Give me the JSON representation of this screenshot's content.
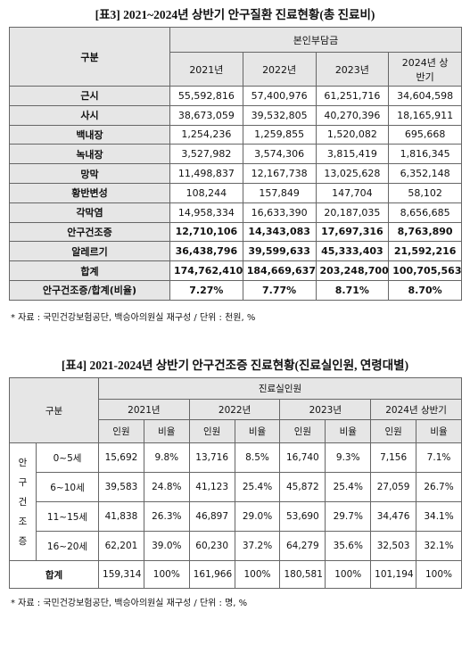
{
  "table3": {
    "title": "[표3] 2021~2024년 상반기 안구질환 진료현황(총 진료비)",
    "header": {
      "group": "구분",
      "super": "본인부담금",
      "years": [
        "2021년",
        "2022년",
        "2023년",
        "2024년 상반기"
      ]
    },
    "rows": [
      [
        "근시",
        "55,592,816",
        "57,400,976",
        "61,251,716",
        "34,604,598"
      ],
      [
        "사시",
        "38,673,059",
        "39,532,805",
        "40,270,396",
        "18,165,911"
      ],
      [
        "백내장",
        "1,254,236",
        "1,259,855",
        "1,520,082",
        "695,668"
      ],
      [
        "녹내장",
        "3,527,982",
        "3,574,306",
        "3,815,419",
        "1,816,345"
      ],
      [
        "망막",
        "11,498,837",
        "12,167,738",
        "13,025,628",
        "6,352,148"
      ],
      [
        "황반변성",
        "108,244",
        "157,849",
        "147,704",
        "58,102"
      ],
      [
        "각막염",
        "14,958,334",
        "16,633,390",
        "20,187,035",
        "8,656,685"
      ],
      [
        "안구건조증",
        "12,710,106",
        "14,343,083",
        "17,697,316",
        "8,763,890"
      ],
      [
        "알레르기",
        "36,438,796",
        "39,599,633",
        "45,333,403",
        "21,592,216"
      ],
      [
        "합계",
        "174,762,410",
        "184,669,637",
        "203,248,700",
        "100,705,563"
      ],
      [
        "안구건조증/합계(비율)",
        "7.27%",
        "7.77%",
        "8.71%",
        "8.70%"
      ]
    ],
    "note": "* 자료 : 국민건강보험공단, 백승아의원실 재구성 / 단위 : 천원, %"
  },
  "table4": {
    "title": "[표4] 2021-2024년 상반기 안구건조증 진료현황(진료실인원, 연령대별)",
    "header": {
      "group": "구분",
      "super": "진료실인원",
      "years": [
        "2021년",
        "2022년",
        "2023년",
        "2024년 상반기"
      ],
      "subcols": [
        "인원",
        "비율",
        "인원",
        "비율",
        "인원",
        "비율",
        "인원",
        "비율"
      ]
    },
    "group_label": "안구건조증",
    "rows": [
      [
        "0~5세",
        "15,692",
        "9.8%",
        "13,716",
        "8.5%",
        "16,740",
        "9.3%",
        "7,156",
        "7.1%"
      ],
      [
        "6~10세",
        "39,583",
        "24.8%",
        "41,123",
        "25.4%",
        "45,872",
        "25.4%",
        "27,059",
        "26.7%"
      ],
      [
        "11~15세",
        "41,838",
        "26.3%",
        "46,897",
        "29.0%",
        "53,690",
        "29.7%",
        "34,476",
        "34.1%"
      ],
      [
        "16~20세",
        "62,201",
        "39.0%",
        "60,230",
        "37.2%",
        "64,279",
        "35.6%",
        "32,503",
        "32.1%"
      ]
    ],
    "total": [
      "합계",
      "159,314",
      "100%",
      "161,966",
      "100%",
      "180,581",
      "100%",
      "101,194",
      "100%"
    ],
    "note": "* 자료 : 국민건강보험공단, 백승아의원실 재구성 / 단위 : 명, %"
  }
}
